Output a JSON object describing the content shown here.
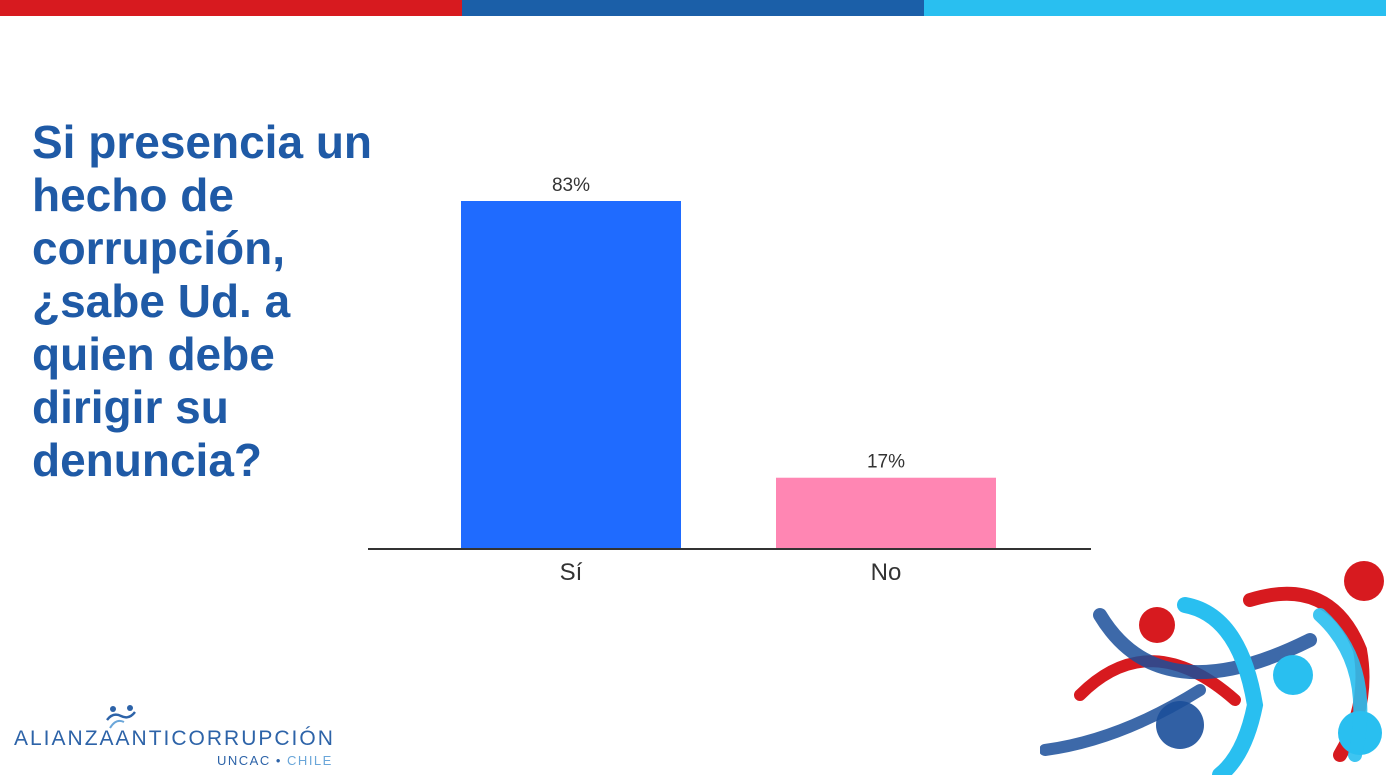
{
  "slide": {
    "question": "Si presencia un hecho de corrupción, ¿sabe Ud. a quien debe dirigir su denuncia?",
    "top_bar_colors": [
      "#d71a1f",
      "#1b5fa8",
      "#29bff0"
    ],
    "question_color": "#1f5aa6"
  },
  "logo": {
    "main_text": "ALIANZAANTICORRUPCIÓN",
    "sub_left": "UNCAC",
    "sub_separator": "•",
    "sub_right": "CHILE",
    "icon": "people-figures-icon"
  },
  "chart_data": {
    "type": "bar",
    "categories": [
      "Sí",
      "No"
    ],
    "values": [
      83,
      17
    ],
    "value_labels": [
      "83%",
      "17%"
    ],
    "colors": [
      "#1f6bff",
      "#ff86b3"
    ],
    "title": "",
    "xlabel": "",
    "ylabel": "",
    "ylim": [
      0,
      100
    ],
    "grid": false,
    "legend": "none"
  }
}
